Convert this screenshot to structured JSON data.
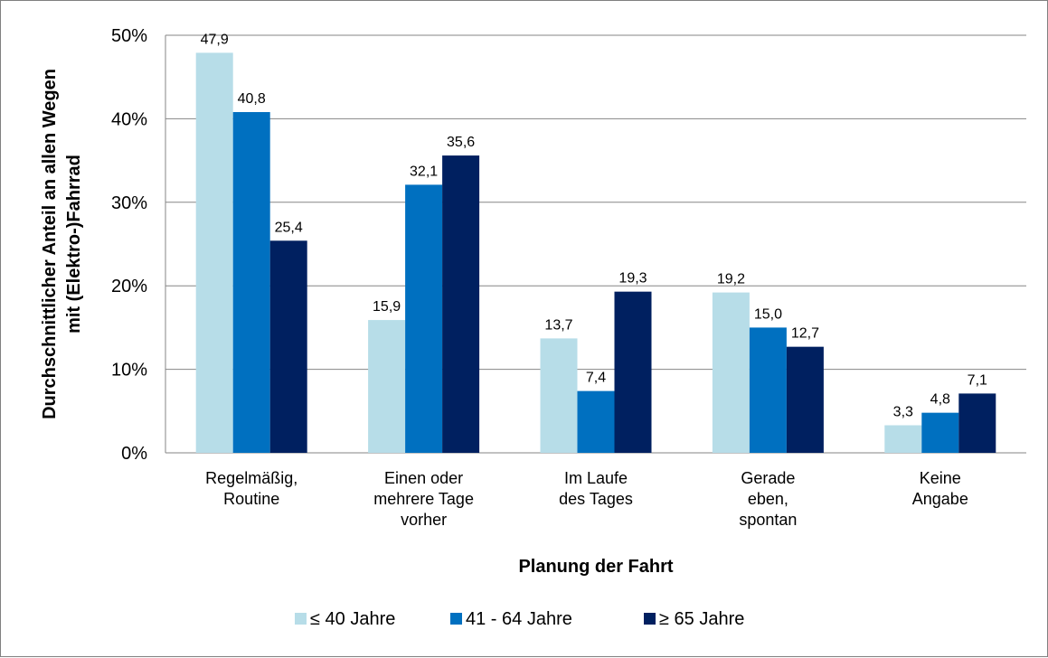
{
  "chart_data": {
    "type": "bar",
    "xlabel": "Planung der Fahrt",
    "ylabel_lines": [
      "Durchschnittlicher Anteil an allen Wegen",
      "mit (Elektro-)Fahrrad"
    ],
    "ylim": [
      0,
      50
    ],
    "yticks": [
      0,
      10,
      20,
      30,
      40,
      50
    ],
    "ytick_labels": [
      "0%",
      "10%",
      "20%",
      "30%",
      "40%",
      "50%"
    ],
    "grid": true,
    "legend_position": "bottom",
    "categories": [
      [
        "Regelmäßig,",
        "Routine"
      ],
      [
        "Einen oder",
        "mehrere Tage",
        "vorher"
      ],
      [
        "Im Laufe",
        "des Tages"
      ],
      [
        "Gerade",
        "eben,",
        "spontan"
      ],
      [
        "Keine",
        "Angabe"
      ]
    ],
    "series": [
      {
        "name": "≤ 40 Jahre",
        "color": "#b7dde8",
        "values": [
          47.9,
          15.9,
          13.7,
          19.2,
          3.3
        ],
        "labels": [
          "47,9",
          "15,9",
          "13,7",
          "19,2",
          "3,3"
        ]
      },
      {
        "name": "41 - 64 Jahre",
        "color": "#0070c0",
        "values": [
          40.8,
          32.1,
          7.4,
          15.0,
          4.8
        ],
        "labels": [
          "40,8",
          "32,1",
          "7,4",
          "15,0",
          "4,8"
        ]
      },
      {
        "name": "≥ 65 Jahre",
        "color": "#002060",
        "values": [
          25.4,
          35.6,
          19.3,
          12.7,
          7.1
        ],
        "labels": [
          "25,4",
          "35,6",
          "19,3",
          "12,7",
          "7,1"
        ]
      }
    ]
  }
}
